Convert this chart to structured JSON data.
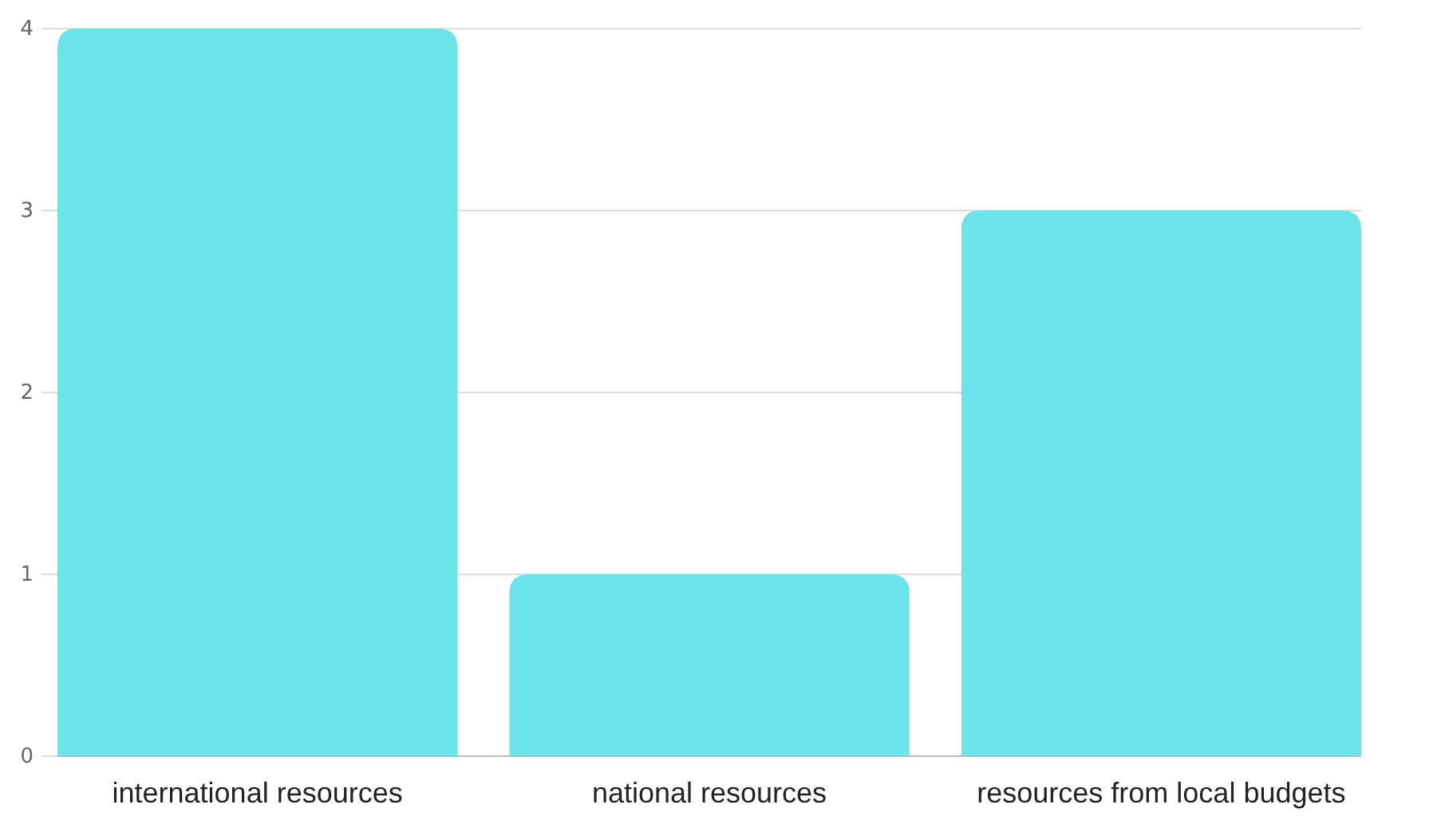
{
  "chart_data": {
    "type": "bar",
    "categories": [
      "international resources",
      "national resources",
      "resources from local budgets"
    ],
    "values": [
      4,
      1,
      3
    ],
    "color": "#6ae4e9",
    "ylim": [
      0,
      4
    ],
    "yticks": [
      0,
      1,
      2,
      3,
      4
    ],
    "grid": "y"
  }
}
